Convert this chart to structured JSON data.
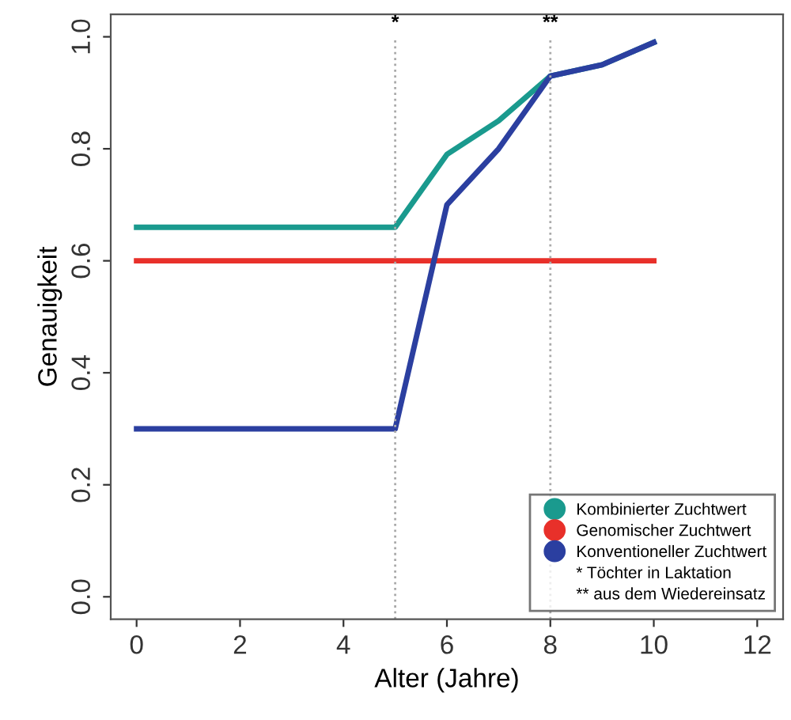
{
  "chart_data": {
    "type": "line",
    "xlabel": "Alter (Jahre)",
    "ylabel": "Genauigkeit",
    "xlim": [
      -0.5,
      12.5
    ],
    "xticks": [
      0,
      2,
      4,
      6,
      8,
      10,
      12
    ],
    "ylim": [
      -0.04,
      1.04
    ],
    "yticks": [
      {
        "value": 0,
        "label": "0.0"
      },
      0.2,
      0.4,
      0.6,
      0.8,
      {
        "value": 1,
        "label": "1.0"
      }
    ],
    "x": [
      0,
      1,
      2,
      3,
      4,
      5,
      6,
      7,
      8,
      9,
      10
    ],
    "series": [
      {
        "name": "Kombinierter Zuchtwert",
        "color": "#1a9a8e",
        "values": [
          0.66,
          0.66,
          0.66,
          0.66,
          0.66,
          0.66,
          0.79,
          0.85,
          0.93,
          0.95,
          0.99
        ]
      },
      {
        "name": "Genomischer Zuchtwert",
        "color": "#e8302a",
        "values": [
          0.6,
          0.6,
          0.6,
          0.6,
          0.6,
          0.6,
          0.6,
          0.6,
          0.6,
          0.6,
          0.6
        ]
      },
      {
        "name": "Konventioneller Zuchtwert",
        "color": "#2b3fa0",
        "values": [
          0.3,
          0.3,
          0.3,
          0.3,
          0.3,
          0.3,
          0.7,
          0.8,
          0.93,
          0.95,
          0.99
        ]
      }
    ],
    "ref_lines": [
      {
        "axis": "x",
        "value": 5,
        "label": "*",
        "color": "#aaaaaa",
        "line_style": "dotted"
      },
      {
        "axis": "x",
        "value": 8,
        "label": "**",
        "color": "#aaaaaa",
        "line_style": "dotted"
      }
    ],
    "annotations": [
      "* Töchter in Laktation",
      "** aus dem Wiedereinsatz"
    ],
    "legend": "bottom right",
    "grid": false,
    "marker": "none",
    "line_style": "solid"
  }
}
